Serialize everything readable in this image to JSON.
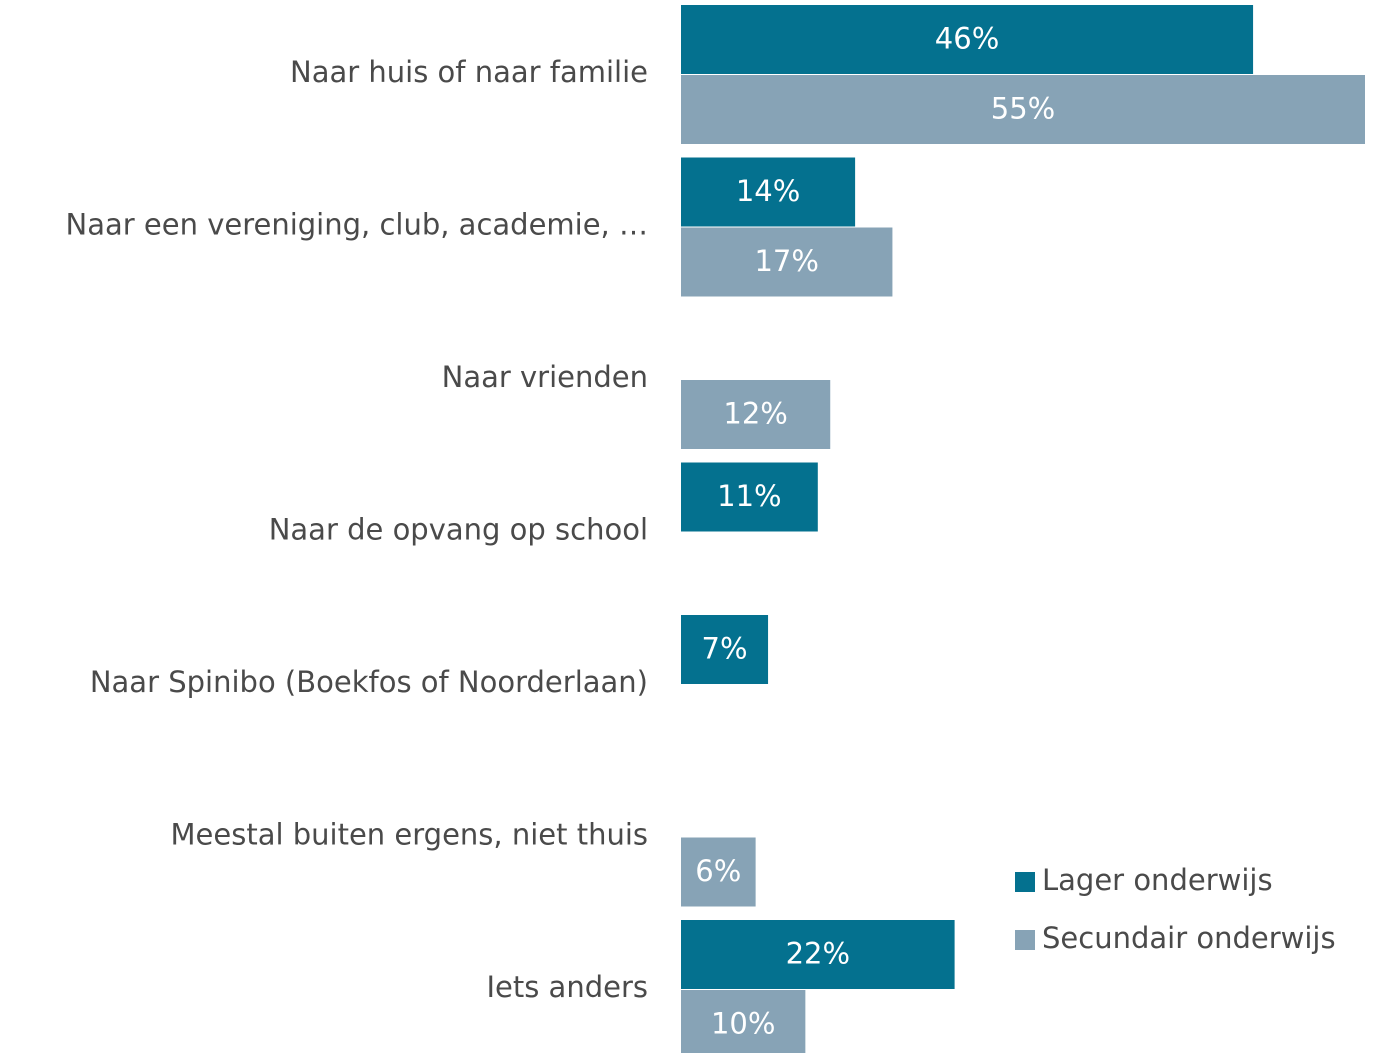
{
  "chart_data": {
    "type": "bar",
    "orientation": "horizontal",
    "categories": [
      "Naar huis of naar familie",
      "Naar een vereniging, club, academie, …",
      "Naar vrienden",
      "Naar de opvang op school",
      "Naar Spinibo (Boekfos of Noorderlaan)",
      "Meestal buiten ergens, niet thuis",
      "Iets anders"
    ],
    "series": [
      {
        "name": "Lager onderwijs",
        "color": "#04718f",
        "values": [
          46,
          14,
          null,
          11,
          7,
          null,
          22
        ],
        "value_labels": [
          "46%",
          "14%",
          null,
          "11%",
          "7%",
          null,
          "22%"
        ]
      },
      {
        "name": "Secundair onderwijs",
        "color": "#87a3b6",
        "values": [
          55,
          17,
          12,
          null,
          null,
          6,
          10
        ],
        "value_labels": [
          "55%",
          "17%",
          "12%",
          null,
          null,
          "6%",
          "10%"
        ]
      }
    ],
    "legend": "lower right"
  }
}
